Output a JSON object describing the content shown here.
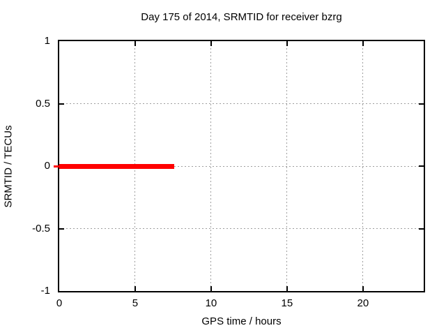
{
  "chart_data": {
    "type": "line",
    "title": "Day 175 of 2014, SRMTID for receiver bzrg",
    "xlabel": "GPS time / hours",
    "ylabel": "SRMTID / TECUs",
    "xlim": [
      0,
      24
    ],
    "ylim": [
      -1,
      1
    ],
    "xticks": [
      0,
      5,
      10,
      15,
      20
    ],
    "yticks": [
      -1,
      -0.5,
      0,
      0.5,
      1
    ],
    "xtick_labels": [
      "0",
      "5",
      "10",
      "15",
      "20"
    ],
    "ytick_labels": [
      "-1",
      "-0.5",
      "0",
      "0.5",
      "1"
    ],
    "grid": true,
    "grid_color": "#9e9e9e",
    "border_color": "#000000",
    "background_color": "#ffffff",
    "legend_position": "none",
    "series": [
      {
        "name": "SRMTID",
        "color": "#ff0000",
        "line_width": 7,
        "points": [
          [
            0,
            0
          ],
          [
            7.56,
            0
          ]
        ]
      }
    ],
    "annotations": [
      {
        "name": "red-zero-tick-outside-left-border",
        "y": 0,
        "color": "#ff0000",
        "length": 8,
        "thickness": 3
      }
    ]
  }
}
